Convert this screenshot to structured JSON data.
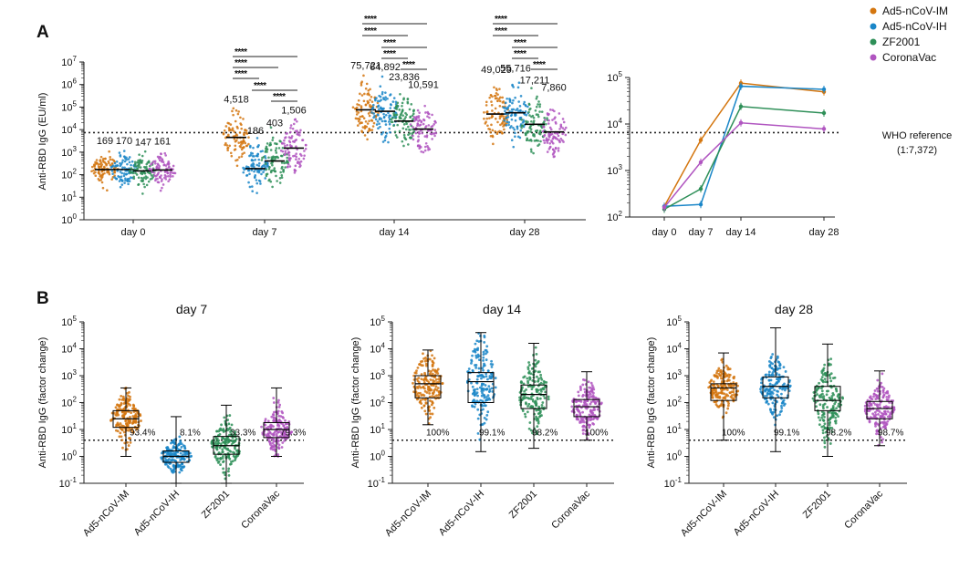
{
  "colors": {
    "Ad5-nCoV-IM": "#d4760f",
    "Ad5-nCoV-IH": "#1a86c8",
    "ZF2001": "#2e8f58",
    "CoronaVac": "#b055c0"
  },
  "panel_a_label": "A",
  "panel_b_label": "B",
  "legend": [
    "Ad5-nCoV-IM",
    "Ad5-nCoV-IH",
    "ZF2001",
    "CoronaVac"
  ],
  "who_reference": {
    "line1": "WHO reference",
    "line2": "(1:7,372)"
  },
  "significance_mark": "****",
  "chart_data": [
    {
      "type": "scatter",
      "title": "",
      "ylabel": "Anti-RBD IgG (EU/ml)",
      "yscale": "log",
      "ylim": [
        1,
        10000000
      ],
      "ytick_exponents": [
        "0",
        "1",
        "2",
        "3",
        "4",
        "5",
        "6",
        "7"
      ],
      "categories": [
        "day 0",
        "day 7",
        "day 14",
        "day 28"
      ],
      "series": [
        {
          "name": "Ad5-nCoV-IM",
          "medians": [
            169,
            4518,
            75721,
            49029
          ],
          "labels": [
            "169",
            "4,518",
            "75,721",
            "49,029"
          ]
        },
        {
          "name": "Ad5-nCoV-IH",
          "medians": [
            170,
            186,
            64892,
            55716
          ],
          "labels": [
            "170",
            "186",
            "64,892",
            "55,716"
          ]
        },
        {
          "name": "ZF2001",
          "medians": [
            147,
            403,
            23836,
            17211
          ],
          "labels": [
            "147",
            "403",
            "23,836",
            "17,211"
          ]
        },
        {
          "name": "CoronaVac",
          "medians": [
            161,
            1506,
            10591,
            7860
          ],
          "labels": [
            "161",
            "1,506",
            "10,591",
            "7,860"
          ]
        }
      ],
      "reference_line": 7372
    },
    {
      "type": "line",
      "title": "",
      "yscale": "log",
      "ylim": [
        100,
        100000
      ],
      "ytick_exponents": [
        "2",
        "3",
        "4",
        "5"
      ],
      "x": [
        "day 0",
        "day 7",
        "day 14",
        "day 28"
      ],
      "series": [
        {
          "name": "Ad5-nCoV-IM",
          "values": [
            169,
            4518,
            75721,
            49029
          ]
        },
        {
          "name": "Ad5-nCoV-IH",
          "values": [
            170,
            186,
            64892,
            55716
          ]
        },
        {
          "name": "ZF2001",
          "values": [
            147,
            403,
            23836,
            17211
          ]
        },
        {
          "name": "CoronaVac",
          "values": [
            161,
            1506,
            10591,
            7860
          ]
        }
      ],
      "reference_line": 7372
    },
    {
      "type": "box",
      "title": "day 7",
      "ylabel": "Anti-RBD IgG (factor change)",
      "yscale": "log",
      "ylim": [
        0.1,
        100000
      ],
      "ytick_exponents": [
        "-1",
        "0",
        "1",
        "2",
        "3",
        "4",
        "5"
      ],
      "categories": [
        "Ad5-nCoV-IM",
        "Ad5-nCoV-IH",
        "ZF2001",
        "CoronaVac"
      ],
      "medians": [
        25,
        1,
        2.5,
        10
      ],
      "q1": [
        12,
        0.6,
        1.2,
        5
      ],
      "q3": [
        50,
        1.6,
        5.5,
        18
      ],
      "min": [
        1,
        0.1,
        0.1,
        1
      ],
      "max": [
        350,
        30,
        80,
        350
      ],
      "percent_labels": [
        "93.4%",
        "8.1%",
        "33.3%",
        "79.3%"
      ],
      "reference_line": 4
    },
    {
      "type": "box",
      "title": "day 14",
      "ylabel": "Anti-RBD IgG (factor change)",
      "yscale": "log",
      "ylim": [
        0.1,
        100000
      ],
      "ytick_exponents": [
        "-1",
        "0",
        "1",
        "2",
        "3",
        "4",
        "5"
      ],
      "categories": [
        "Ad5-nCoV-IM",
        "Ad5-nCoV-IH",
        "ZF2001",
        "CoronaVac"
      ],
      "medians": [
        500,
        600,
        200,
        70
      ],
      "q1": [
        150,
        100,
        60,
        30
      ],
      "q3": [
        1000,
        1300,
        450,
        130
      ],
      "min": [
        15,
        1.5,
        2,
        4
      ],
      "max": [
        9000,
        40000,
        16000,
        1400
      ],
      "percent_labels": [
        "100%",
        "99.1%",
        "98.2%",
        "100%"
      ],
      "reference_line": 4
    },
    {
      "type": "box",
      "title": "day 28",
      "ylabel": "Anti-RBD IgG (factor change)",
      "yscale": "log",
      "ylim": [
        0.1,
        100000
      ],
      "ytick_exponents": [
        "-1",
        "0",
        "1",
        "2",
        "3",
        "4",
        "5"
      ],
      "categories": [
        "Ad5-nCoV-IM",
        "Ad5-nCoV-IH",
        "ZF2001",
        "CoronaVac"
      ],
      "medians": [
        350,
        400,
        120,
        60
      ],
      "q1": [
        120,
        150,
        50,
        25
      ],
      "q3": [
        500,
        900,
        400,
        110
      ],
      "min": [
        4,
        1.5,
        1,
        2.5
      ],
      "max": [
        7000,
        60000,
        15000,
        1500
      ],
      "percent_labels": [
        "100%",
        "99.1%",
        "98.2%",
        "98.7%"
      ],
      "reference_line": 4
    }
  ]
}
